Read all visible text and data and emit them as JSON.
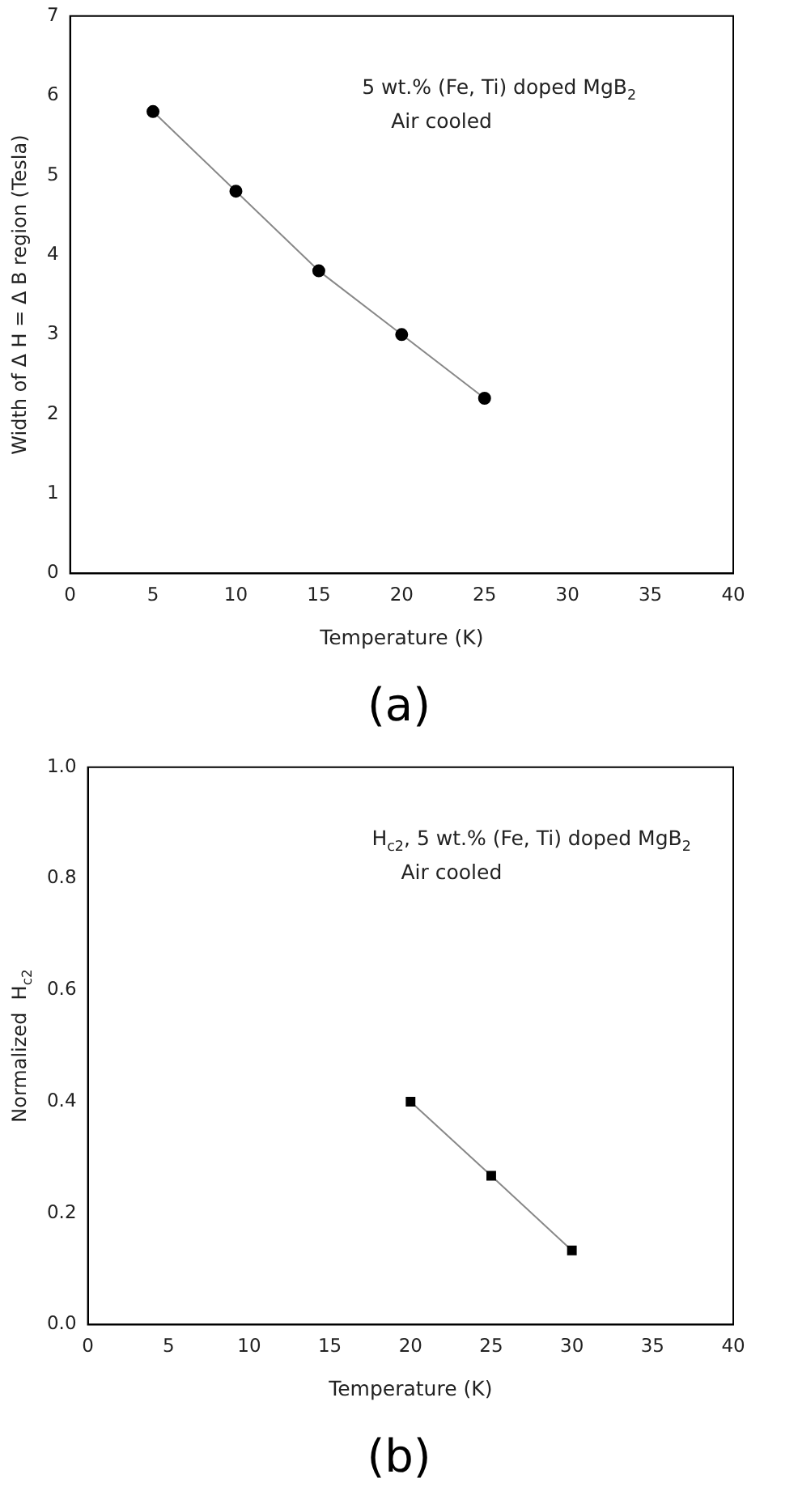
{
  "chart_data": [
    {
      "type": "line",
      "subtitle": "(a)",
      "xlabel": "Temperature (K)",
      "ylabel": "Width of Δ H = Δ B region (Tesla)",
      "annotations": [
        "5 wt.% (Fe, Ti) doped MgB$_{2}$",
        "Air cooled"
      ],
      "x": [
        5,
        10,
        15,
        20,
        25
      ],
      "series": [
        {
          "color": "#000000",
          "values": [
            5.8,
            4.8,
            3.8,
            3.0,
            2.2
          ]
        }
      ],
      "xlim": [
        0,
        40
      ],
      "xticks": [
        0,
        5,
        10,
        15,
        20,
        25,
        30,
        35,
        40
      ],
      "ylim": [
        0,
        7
      ],
      "yticks": [
        0,
        1,
        2,
        3,
        4,
        5,
        6,
        7
      ],
      "grid": false,
      "legend": false,
      "marker": "circle",
      "line_style": "solid"
    },
    {
      "type": "line",
      "subtitle": "(b)",
      "xlabel": "Temperature (K)",
      "ylabel": "Normalized  H$_{c2}$",
      "annotations": [
        "H$_{c2}$, 5 wt.% (Fe, Ti) doped MgB$_{2}$",
        "Air cooled"
      ],
      "x": [
        20,
        25,
        30
      ],
      "series": [
        {
          "color": "#000000",
          "values": [
            0.4,
            0.267,
            0.133
          ]
        }
      ],
      "xlim": [
        0,
        40
      ],
      "xticks": [
        0,
        5,
        10,
        15,
        20,
        25,
        30,
        35,
        40
      ],
      "ylim": [
        0,
        1
      ],
      "yticks": [
        {
          "value": 0,
          "label": "0.0"
        },
        {
          "value": 0.2,
          "label": "0.2"
        },
        {
          "value": 0.4,
          "label": "0.4"
        },
        {
          "value": 0.6,
          "label": "0.6"
        },
        {
          "value": 0.8,
          "label": "0.8"
        },
        {
          "value": 1,
          "label": "1.0"
        }
      ],
      "grid": false,
      "legend": false,
      "marker": "square",
      "line_style": "solid"
    }
  ]
}
